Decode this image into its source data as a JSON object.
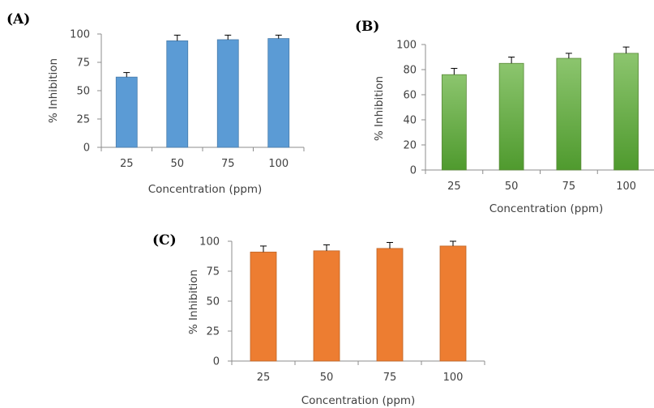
{
  "chart_data": [
    {
      "panel": "(A)",
      "type": "bar",
      "categories": [
        "25",
        "50",
        "75",
        "100"
      ],
      "values": [
        62,
        94,
        95,
        96
      ],
      "errors": [
        4,
        5,
        4,
        3
      ],
      "color": "#5b9bd5",
      "xlabel": "Concentration (ppm)",
      "ylabel": "% Inhibition",
      "ylim": [
        0,
        100
      ],
      "yticks": [
        0,
        25,
        50,
        75,
        100
      ],
      "grid": false
    },
    {
      "panel": "(B)",
      "type": "bar",
      "categories": [
        "25",
        "50",
        "75",
        "100"
      ],
      "values": [
        76,
        85,
        89,
        93
      ],
      "errors": [
        5,
        5,
        4,
        5
      ],
      "color": "#70ad47",
      "xlabel": "Concentration (ppm)",
      "ylabel": "% Inhibition",
      "ylim": [
        0,
        100
      ],
      "yticks": [
        0,
        20,
        40,
        60,
        80,
        100
      ],
      "grid": false
    },
    {
      "panel": "(C)",
      "type": "bar",
      "categories": [
        "25",
        "50",
        "75",
        "100"
      ],
      "values": [
        91,
        92,
        94,
        96
      ],
      "errors": [
        5,
        5,
        5,
        4
      ],
      "color": "#ed7d31",
      "xlabel": "Concentration (ppm)",
      "ylabel": "% Inhibition",
      "ylim": [
        0,
        100
      ],
      "yticks": [
        0,
        25,
        50,
        75,
        100
      ],
      "grid": false
    }
  ]
}
